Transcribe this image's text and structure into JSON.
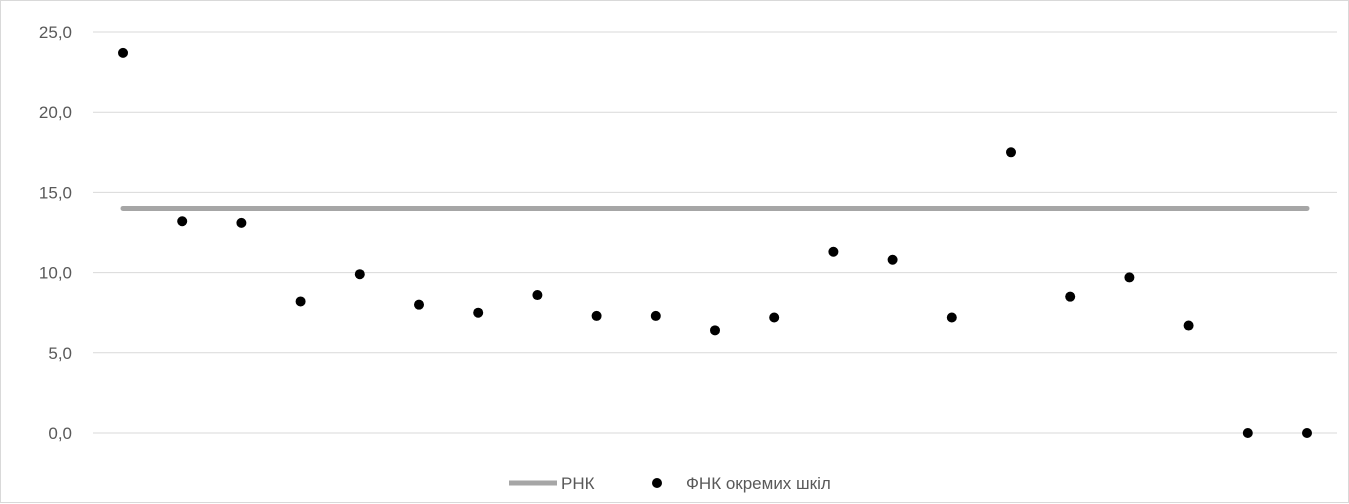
{
  "chart_data": {
    "type": "scatter",
    "title": "",
    "xlabel": "",
    "ylabel": "",
    "ylim": [
      0,
      25
    ],
    "y_ticks": [
      "0,0",
      "5,0",
      "10,0",
      "15,0",
      "20,0",
      "25,0"
    ],
    "y_tick_values": [
      0,
      5,
      10,
      15,
      20,
      25
    ],
    "grid": true,
    "legend_position": "bottom",
    "x": [
      1,
      2,
      3,
      4,
      5,
      6,
      7,
      8,
      9,
      10,
      11,
      12,
      13,
      14,
      15,
      16,
      17,
      18,
      19,
      20,
      21
    ],
    "series": [
      {
        "name": "РНК",
        "kind": "line",
        "color": "#a6a6a6",
        "values": [
          14.0,
          14.0,
          14.0,
          14.0,
          14.0,
          14.0,
          14.0,
          14.0,
          14.0,
          14.0,
          14.0,
          14.0,
          14.0,
          14.0,
          14.0,
          14.0,
          14.0,
          14.0,
          14.0,
          14.0,
          14.0
        ]
      },
      {
        "name": "ФНК окремих шкіл",
        "kind": "markers",
        "color": "#000000",
        "values": [
          23.7,
          13.2,
          13.1,
          8.2,
          9.9,
          8.0,
          7.5,
          8.6,
          7.3,
          7.3,
          6.4,
          7.2,
          11.3,
          10.8,
          7.2,
          17.5,
          8.5,
          9.7,
          6.7,
          0.0,
          0.0
        ]
      }
    ]
  }
}
